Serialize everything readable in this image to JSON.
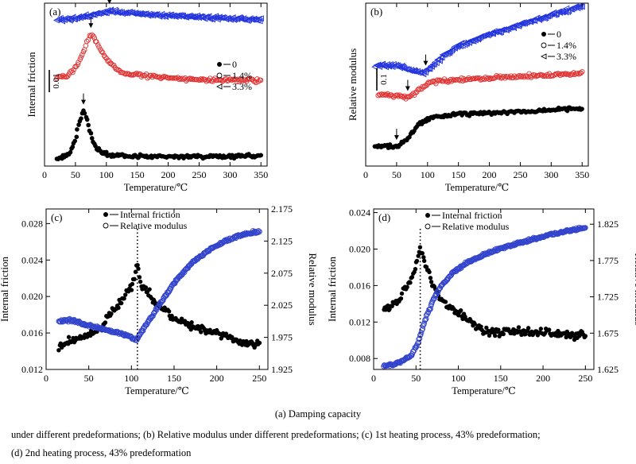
{
  "caption": {
    "line1": "(a) Damping capacity",
    "line2": "under different predeformations; (b) Relative modulus under different predeformations; (c) 1st heating process, 43% predeformation;",
    "line3": "(d) 2nd heating process, 43% predeformation"
  },
  "chart_data": [
    {
      "panel": "(a)",
      "type": "scatter",
      "xlabel": "Temperature/℃",
      "ylabel": "Internal friction",
      "xlim": [
        0,
        360
      ],
      "xticks": [
        0,
        50,
        100,
        150,
        200,
        250,
        300,
        350
      ],
      "scale_bar": "0.01",
      "legend": [
        "0",
        "1.4%",
        "3.3%"
      ],
      "series": [
        {
          "name": "0",
          "marker": "filled-circle",
          "color": "#000000",
          "x": [
            20,
            40,
            50,
            55,
            60,
            63,
            66,
            70,
            75,
            80,
            90,
            100,
            125,
            150,
            200,
            250,
            300,
            350
          ],
          "y": [
            0.0015,
            0.0025,
            0.0055,
            0.0085,
            0.0105,
            0.0115,
            0.0108,
            0.009,
            0.0065,
            0.0045,
            0.003,
            0.0025,
            0.0022,
            0.002,
            0.002,
            0.002,
            0.002,
            0.0022
          ],
          "peak_arrow": 63
        },
        {
          "name": "1.4%",
          "marker": "open-circle",
          "color": "#e03030",
          "x": [
            20,
            40,
            55,
            65,
            70,
            75,
            80,
            85,
            95,
            105,
            125,
            150,
            200,
            250,
            300,
            350
          ],
          "y": [
            0.0185,
            0.019,
            0.0215,
            0.0245,
            0.0265,
            0.0275,
            0.027,
            0.0255,
            0.0235,
            0.0215,
            0.0195,
            0.019,
            0.0185,
            0.018,
            0.018,
            0.0178
          ],
          "peak_arrow": 75
        },
        {
          "name": "3.3%",
          "marker": "open-triangle-left",
          "color": "#2233dd",
          "x": [
            20,
            50,
            75,
            95,
            105,
            120,
            150,
            200,
            250,
            300,
            350
          ],
          "y": [
            0.0305,
            0.0308,
            0.0315,
            0.0322,
            0.0325,
            0.0322,
            0.0318,
            0.0314,
            0.0311,
            0.0308,
            0.0305
          ],
          "peak_arrow": 105
        }
      ]
    },
    {
      "panel": "(b)",
      "type": "scatter",
      "xlabel": "Temperature/℃",
      "ylabel": "Relative modulus",
      "xlim": [
        0,
        360
      ],
      "xticks": [
        0,
        50,
        100,
        150,
        200,
        250,
        300,
        350
      ],
      "scale_bar": "0.1",
      "legend": [
        "0",
        "1.4%",
        "3.3%"
      ],
      "series": [
        {
          "name": "0",
          "marker": "filled-circle",
          "color": "#000000",
          "x": [
            15,
            30,
            50,
            60,
            70,
            80,
            90,
            100,
            110,
            130,
            150,
            200,
            250,
            300,
            350
          ],
          "y": [
            0.1,
            0.1,
            0.101,
            0.11,
            0.13,
            0.155,
            0.175,
            0.185,
            0.19,
            0.195,
            0.2,
            0.203,
            0.207,
            0.212,
            0.218
          ],
          "dip_arrow": 50
        },
        {
          "name": "1.4%",
          "marker": "open-circle",
          "color": "#e03030",
          "x": [
            20,
            40,
            55,
            65,
            70,
            80,
            90,
            100,
            110,
            130,
            150,
            200,
            250,
            300,
            350
          ],
          "y": [
            0.26,
            0.258,
            0.255,
            0.25,
            0.252,
            0.265,
            0.28,
            0.295,
            0.3,
            0.302,
            0.305,
            0.31,
            0.315,
            0.32,
            0.325
          ],
          "dip_arrow": 68
        },
        {
          "name": "3.3%",
          "marker": "open-triangle-left",
          "color": "#2233dd",
          "x": [
            15,
            40,
            60,
            80,
            95,
            100,
            115,
            130,
            150,
            200,
            250,
            300,
            350
          ],
          "y": [
            0.35,
            0.35,
            0.345,
            0.33,
            0.325,
            0.335,
            0.36,
            0.385,
            0.41,
            0.445,
            0.475,
            0.505,
            0.53
          ],
          "dip_arrow": 97
        }
      ]
    },
    {
      "panel": "(c)",
      "type": "scatter",
      "xlabel": "Temperature/℃",
      "ylabel": "Internal friction",
      "ylabel_right": "Relative modulus",
      "xlim": [
        0,
        260
      ],
      "ylim": [
        0.012,
        0.0296
      ],
      "ylim_right": [
        1.925,
        2.175
      ],
      "xticks": [
        0,
        50,
        100,
        150,
        200,
        250
      ],
      "yticks": [
        0.012,
        0.016,
        0.02,
        0.024,
        0.028
      ],
      "yticks_right": [
        1.925,
        1.975,
        2.025,
        2.075,
        2.125,
        2.175
      ],
      "ytick_labels": [
        "0.012",
        "0.016",
        "0.020",
        "0.024",
        "0.028"
      ],
      "ytick_labels_right": [
        "1.925",
        "1.975",
        "2.025",
        "2.075",
        "2.125",
        "2.175"
      ],
      "legend": [
        "Internal friction",
        "Relative modulus"
      ],
      "dotted_line_x": 107,
      "series": [
        {
          "name": "Internal friction",
          "marker": "filled-circle",
          "color": "#000000",
          "axis": "left",
          "x": [
            15,
            25,
            40,
            55,
            65,
            75,
            85,
            95,
            102,
            107,
            112,
            120,
            130,
            140,
            150,
            165,
            180,
            200,
            215,
            230,
            250
          ],
          "y": [
            0.0145,
            0.015,
            0.0155,
            0.016,
            0.0165,
            0.018,
            0.019,
            0.0205,
            0.0215,
            0.0235,
            0.021,
            0.0205,
            0.019,
            0.0185,
            0.0175,
            0.017,
            0.0165,
            0.016,
            0.0155,
            0.015,
            0.0148
          ]
        },
        {
          "name": "Relative modulus",
          "marker": "open-circle",
          "color": "#3344cc",
          "axis": "right",
          "x": [
            15,
            25,
            35,
            45,
            60,
            75,
            90,
            100,
            106,
            112,
            120,
            135,
            150,
            170,
            190,
            210,
            230,
            250
          ],
          "y": [
            2.0,
            2.002,
            2.0,
            1.995,
            1.99,
            1.985,
            1.98,
            1.975,
            1.97,
            1.985,
            2.0,
            2.03,
            2.06,
            2.09,
            2.11,
            2.125,
            2.135,
            2.14
          ]
        }
      ]
    },
    {
      "panel": "(d)",
      "type": "scatter",
      "xlabel": "Temperature/℃",
      "ylabel": "Internal friction",
      "ylabel_right": "Relative modulus",
      "xlim": [
        0,
        260
      ],
      "ylim": [
        0.0068,
        0.0244
      ],
      "ylim_right": [
        1.625,
        1.846
      ],
      "xticks": [
        0,
        50,
        100,
        150,
        200,
        250
      ],
      "yticks": [
        0.008,
        0.012,
        0.016,
        0.02,
        0.024
      ],
      "yticks_right": [
        1.625,
        1.675,
        1.725,
        1.775,
        1.825
      ],
      "ytick_labels": [
        "0.008",
        "0.012",
        "0.016",
        "0.020",
        "0.024"
      ],
      "ytick_labels_right": [
        "1.625",
        "1.675",
        "1.725",
        "1.775",
        "1.825"
      ],
      "legend": [
        "Internal friction",
        "Relative modulus"
      ],
      "dotted_line_x": 55,
      "series": [
        {
          "name": "Internal friction",
          "marker": "filled-circle",
          "color": "#000000",
          "axis": "left",
          "x": [
            12,
            20,
            30,
            40,
            45,
            50,
            55,
            60,
            65,
            70,
            80,
            90,
            100,
            115,
            130,
            150,
            175,
            200,
            225,
            250
          ],
          "y": [
            0.0135,
            0.0138,
            0.0145,
            0.016,
            0.017,
            0.0185,
            0.02,
            0.0185,
            0.0175,
            0.016,
            0.0145,
            0.0135,
            0.013,
            0.012,
            0.011,
            0.0108,
            0.011,
            0.0108,
            0.0107,
            0.0105
          ]
        },
        {
          "name": "Relative modulus",
          "marker": "open-circle",
          "color": "#3344cc",
          "axis": "right",
          "x": [
            12,
            25,
            35,
            45,
            52,
            60,
            70,
            80,
            95,
            110,
            130,
            150,
            175,
            200,
            225,
            250
          ],
          "y": [
            1.63,
            1.632,
            1.637,
            1.645,
            1.66,
            1.69,
            1.72,
            1.74,
            1.76,
            1.772,
            1.783,
            1.792,
            1.8,
            1.808,
            1.815,
            1.82
          ]
        }
      ]
    }
  ]
}
